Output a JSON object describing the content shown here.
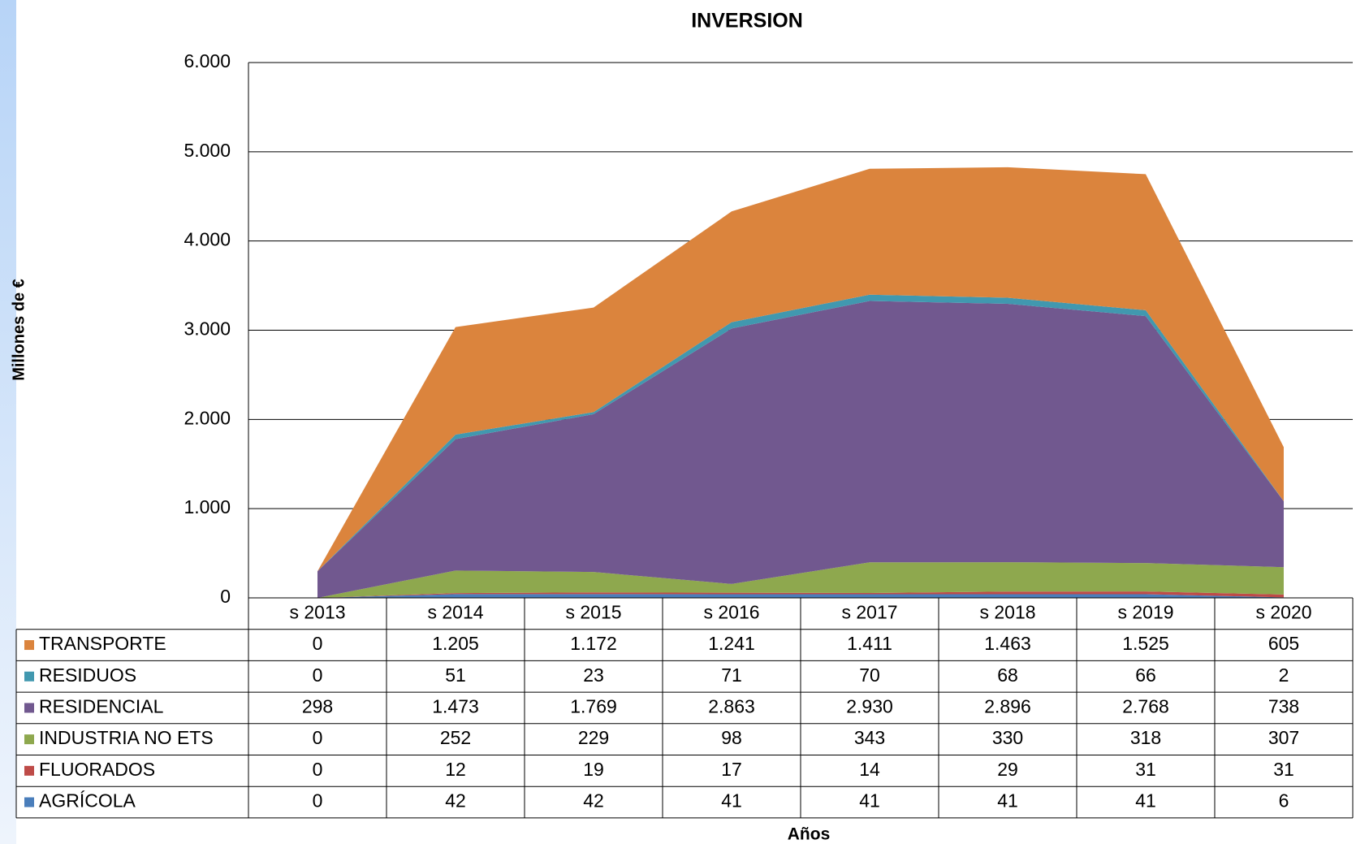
{
  "chart_data": {
    "type": "stacked-area",
    "title": "INVERSION",
    "y_label": "Millones de €",
    "x_label": "Años",
    "categories": [
      "s 2013",
      "s 2014",
      "s 2015",
      "s 2016",
      "s 2017",
      "s 2018",
      "s 2019",
      "s 2020"
    ],
    "ylim": [
      0,
      6000
    ],
    "yticks": [
      0,
      {
        "value": 1000,
        "label": "1.000"
      },
      {
        "value": 2000,
        "label": "2.000"
      },
      {
        "value": 3000,
        "label": "3.000"
      },
      {
        "value": 4000,
        "label": "4.000"
      },
      {
        "value": 5000,
        "label": "5.000"
      },
      {
        "value": 6000,
        "label": "6.000"
      }
    ],
    "grid": true,
    "series": [
      {
        "name": "AGRÍCOLA",
        "color": "#4a7ebb",
        "values": [
          0,
          42,
          42,
          41,
          41,
          41,
          41,
          6
        ],
        "value_labels": [
          "0",
          "42",
          "42",
          "41",
          "41",
          "41",
          "41",
          "6"
        ]
      },
      {
        "name": "FLUORADOS",
        "color": "#be4b48",
        "values": [
          0,
          12,
          19,
          17,
          14,
          29,
          31,
          31
        ],
        "value_labels": [
          "0",
          "12",
          "19",
          "17",
          "14",
          "29",
          "31",
          "31"
        ]
      },
      {
        "name": "INDUSTRIA NO ETS",
        "color": "#8ea84e",
        "values": [
          0,
          252,
          229,
          98,
          343,
          330,
          318,
          307
        ],
        "value_labels": [
          "0",
          "252",
          "229",
          "98",
          "343",
          "330",
          "318",
          "307"
        ]
      },
      {
        "name": "RESIDENCIAL",
        "color": "#71588f",
        "values": [
          298,
          1473,
          1769,
          2863,
          2930,
          2896,
          2768,
          738
        ],
        "value_labels": [
          "298",
          "1.473",
          "1.769",
          "2.863",
          "2.930",
          "2.896",
          "2.768",
          "738"
        ]
      },
      {
        "name": "RESIDUOS",
        "color": "#4198af",
        "values": [
          0,
          51,
          23,
          71,
          70,
          68,
          66,
          2
        ],
        "value_labels": [
          "0",
          "51",
          "23",
          "71",
          "70",
          "68",
          "66",
          "2"
        ]
      },
      {
        "name": "TRANSPORTE",
        "color": "#db843d",
        "values": [
          0,
          1205,
          1172,
          1241,
          1411,
          1463,
          1525,
          605
        ],
        "value_labels": [
          "0",
          "1.205",
          "1.172",
          "1.241",
          "1.411",
          "1.463",
          "1.525",
          "605"
        ]
      }
    ]
  }
}
